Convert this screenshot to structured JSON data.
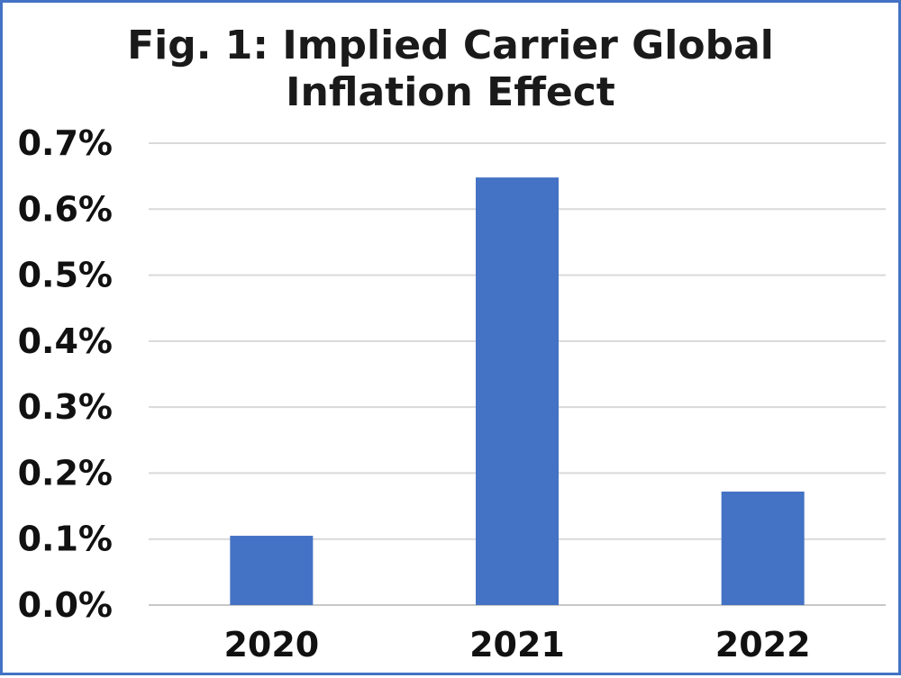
{
  "chart_data": {
    "type": "bar",
    "title_lines": [
      "Fig. 1: Implied Carrier Global",
      "Inflation Effect"
    ],
    "categories": [
      "2020",
      "2021",
      "2022"
    ],
    "values": [
      0.105,
      0.648,
      0.172
    ],
    "value_unit": "%",
    "ylim": [
      0,
      0.7
    ],
    "yticks": [
      "0.0%",
      "0.1%",
      "0.2%",
      "0.3%",
      "0.4%",
      "0.5%",
      "0.6%",
      "0.7%"
    ],
    "grid": true,
    "legend": "none",
    "bar_color": "#4472c4",
    "grid_color": "#d9d9d9"
  }
}
